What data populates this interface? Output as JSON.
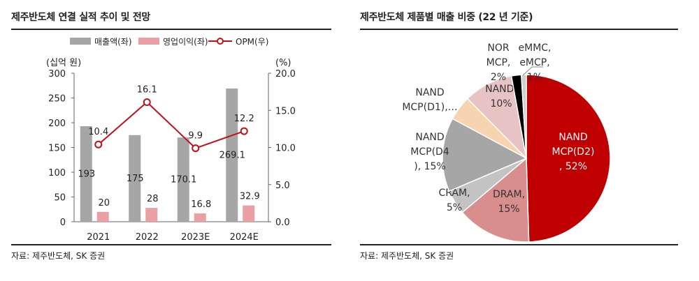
{
  "left": {
    "title": "제주반도체 연결 실적 추이 및 전망",
    "source": "자료: 제주반도체, SK 증권"
  },
  "right": {
    "title": "제주반도체 제품별 매출 비중 (22 년 기준)",
    "source": "자료: 제주반도체, SK 증권"
  },
  "colors": {
    "revenue_bar": "#a6a6a6",
    "op_bar": "#e8a0a5",
    "opm_line": "#c0111a",
    "pie": [
      "#c00000",
      "#d98e8e",
      "#c3c3c3",
      "#a6a6a6",
      "#f8d3b0",
      "#e8c3c3",
      "#000000",
      "#cfcfcf"
    ]
  },
  "chart_data": [
    {
      "type": "bar",
      "categories": [
        "2021",
        "2022",
        "2023E",
        "2024E"
      ],
      "series": [
        {
          "name": "매출액(좌)",
          "axis": "left",
          "values": [
            193,
            175,
            170.1,
            269.1
          ],
          "labels": [
            "193",
            "175",
            "170.1",
            "269.1"
          ]
        },
        {
          "name": "영업이익(좌)",
          "axis": "left",
          "values": [
            20,
            28,
            16.8,
            32.9
          ],
          "labels": [
            "20",
            "28",
            "16.8",
            "32.9"
          ]
        },
        {
          "name": "OPM(우)",
          "type": "line",
          "axis": "right",
          "values": [
            10.4,
            16.1,
            9.9,
            12.2
          ],
          "labels": [
            "10.4",
            "16.1",
            "9.9",
            "12.2"
          ]
        }
      ],
      "ylabel": "(십억 원)",
      "y2label": "(%)",
      "ylim": [
        0,
        300
      ],
      "y2lim": [
        0,
        20
      ],
      "yticks": [
        "0",
        "50",
        "100",
        "150",
        "200",
        "250",
        "300"
      ],
      "y2ticks": [
        "0.0",
        "5.0",
        "10.0",
        "15.0",
        "20.0"
      ],
      "legend": "top",
      "grid": false
    },
    {
      "type": "pie",
      "slices": [
        {
          "label": [
            "NAND",
            "MCP(D2)",
            ", 52%"
          ],
          "value": 52
        },
        {
          "label": [
            "DRAM,",
            "15%"
          ],
          "value": 15
        },
        {
          "label": [
            "CRAM,",
            "5%"
          ],
          "value": 5
        },
        {
          "label": [
            "NAND",
            "MCP(D4",
            "), 15%"
          ],
          "value": 15
        },
        {
          "label": [
            "NAND",
            "MCP(D1),…"
          ],
          "value": 5
        },
        {
          "label": [
            "NAND,",
            "10%"
          ],
          "value": 10
        },
        {
          "label": [
            "NOR",
            "MCP,",
            "2%"
          ],
          "value": 2
        },
        {
          "label": [
            "eMMC,",
            "eMCP,",
            "1%"
          ],
          "value": 1
        }
      ]
    }
  ]
}
